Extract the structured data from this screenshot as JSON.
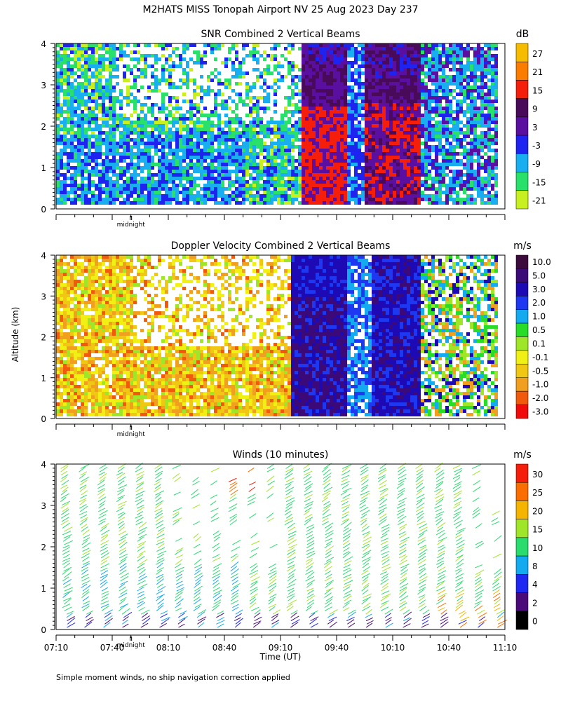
{
  "title": "M2HATS MISS Tonopah Airport NV  25 Aug 2023 Day 237",
  "ylabel": "Altitude (km)",
  "xlabel": "Time (UT)",
  "footnote": "Simple moment winds, no ship navigation correction applied",
  "midnight_label": "midnight",
  "time_ticks": [
    "07:10",
    "07:40",
    "08:10",
    "08:40",
    "09:10",
    "09:40",
    "10:10",
    "10:40",
    "11:10"
  ],
  "chart_data": [
    {
      "type": "heatmap",
      "title": "SNR Combined 2 Vertical Beams",
      "units": "dB",
      "y_ticks": [
        "0",
        "1",
        "2",
        "3",
        "4"
      ],
      "ylim": [
        0,
        4
      ],
      "xlim": [
        "07:10",
        "11:10"
      ],
      "colorbar_labels": [
        "27",
        "21",
        "15",
        "9",
        "3",
        "-3",
        "-9",
        "-15",
        "-21"
      ],
      "colors": [
        "#f5bc00",
        "#fa7d00",
        "#f51e0a",
        "#4a0a5a",
        "#5a0fa0",
        "#1e23f0",
        "#18aef0",
        "#28e06a",
        "#c8f020"
      ],
      "regions": [
        {
          "start": "07:10",
          "end": "09:15",
          "level": "-9 to -15 dB, patchy"
        },
        {
          "start": "09:20",
          "end": "09:45",
          "level": "9 to 21 dB"
        },
        {
          "start": "09:55",
          "end": "10:25",
          "level": "9 to 15 dB"
        },
        {
          "start": "10:25",
          "end": "11:05",
          "level": "-3 to -15 dB, patchy"
        }
      ]
    },
    {
      "type": "heatmap",
      "title": "Doppler Velocity Combined 2 Vertical Beams",
      "units": "m/s",
      "y_ticks": [
        "0",
        "1",
        "2",
        "3",
        "4"
      ],
      "ylim": [
        0,
        4
      ],
      "xlim": [
        "07:10",
        "11:10"
      ],
      "colorbar_labels": [
        "10.0",
        "5.0",
        "3.0",
        "2.0",
        "1.0",
        "0.5",
        "0.1",
        "-0.1",
        "-0.5",
        "-1.0",
        "-2.0",
        "-3.0"
      ],
      "colors": [
        "#3c0a3c",
        "#3c0a78",
        "#1e0ab4",
        "#1e37f0",
        "#14aaf0",
        "#28dc28",
        "#a0e628",
        "#f0f014",
        "#f0c814",
        "#f0a01e",
        "#f05a0a",
        "#f00a0a"
      ],
      "regions": [
        {
          "start": "07:10",
          "end": "09:15",
          "level": "-0.1 to -1.0 m/s"
        },
        {
          "start": "09:15",
          "end": "09:45",
          "level": "3.0 to 10.0 m/s"
        },
        {
          "start": "09:55",
          "end": "10:25",
          "level": "2.0 to 5.0 m/s"
        },
        {
          "start": "10:25",
          "end": "11:05",
          "level": "-0.5 to 3.0 m/s"
        }
      ]
    },
    {
      "type": "wind_barbs",
      "title": "Winds (10 minutes)",
      "units": "m/s",
      "y_ticks": [
        "0",
        "1",
        "2",
        "3",
        "4"
      ],
      "ylim": [
        0,
        4
      ],
      "xlim": [
        "07:10",
        "11:10"
      ],
      "colorbar_labels": [
        "30",
        "25",
        "20",
        "15",
        "10",
        "8",
        "4",
        "2",
        "0"
      ],
      "colors": [
        "#f51e0a",
        "#fa6e00",
        "#f5b400",
        "#a0e628",
        "#28dc6e",
        "#14aaf0",
        "#1e28f0",
        "#4a0a7a",
        "#000000"
      ],
      "profile_times": [
        "07:15",
        "07:25",
        "07:35",
        "07:45",
        "07:55",
        "08:05",
        "08:15",
        "08:25",
        "08:35",
        "08:45",
        "08:55",
        "09:05",
        "09:15",
        "09:25",
        "09:35",
        "09:45",
        "09:55",
        "10:05",
        "10:15",
        "10:25",
        "10:35",
        "10:45",
        "10:55",
        "11:05"
      ]
    }
  ]
}
